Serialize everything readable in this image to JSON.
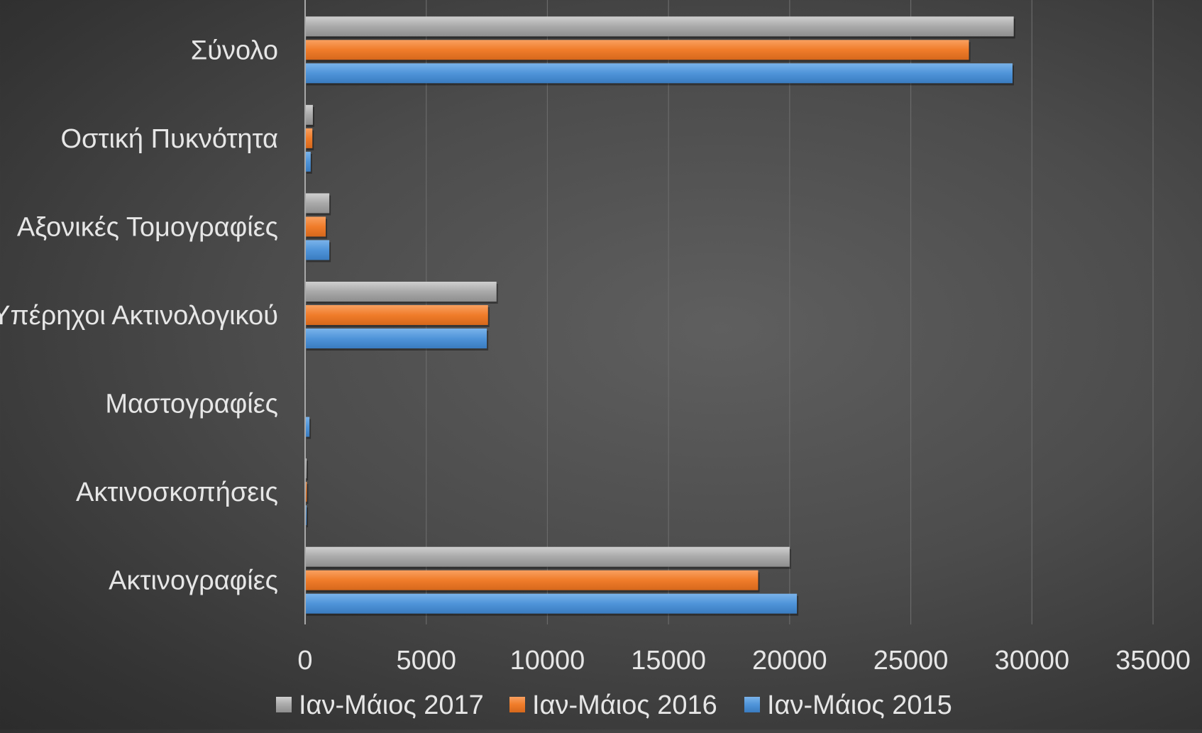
{
  "chart_data": {
    "type": "bar",
    "orientation": "horizontal",
    "title": "",
    "xlabel": "",
    "ylabel": "",
    "categories": [
      "Ακτινογραφίες",
      "Ακτινοσκοπήσεις",
      "Μαστογραφίες",
      "Υπέρηχοι Ακτινολογικού",
      "Αξονικές Τομογραφίες",
      "Οστική Πυκνότητα",
      "Σύνολο"
    ],
    "series": [
      {
        "name": "Ιαν-Μάιος 2015",
        "color": "#4f94d9",
        "values": [
          20300,
          60,
          180,
          7500,
          1000,
          230,
          29200
        ]
      },
      {
        "name": "Ιαν-Μάιος 2016",
        "color": "#f07c2a",
        "values": [
          18700,
          70,
          0,
          7550,
          850,
          300,
          27400
        ]
      },
      {
        "name": "Ιαν-Μάιος 2017",
        "color": "#a5a5a5",
        "values": [
          20000,
          60,
          0,
          7900,
          1000,
          320,
          29250
        ]
      }
    ],
    "legend_order": [
      "Ιαν-Μάιος 2017",
      "Ιαν-Μάιος 2016",
      "Ιαν-Μάιος 2015"
    ],
    "xlim": [
      0,
      35000
    ],
    "xticks": [
      0,
      5000,
      10000,
      15000,
      20000,
      25000,
      30000,
      35000
    ],
    "grid": "vertical",
    "legend_position": "bottom"
  }
}
